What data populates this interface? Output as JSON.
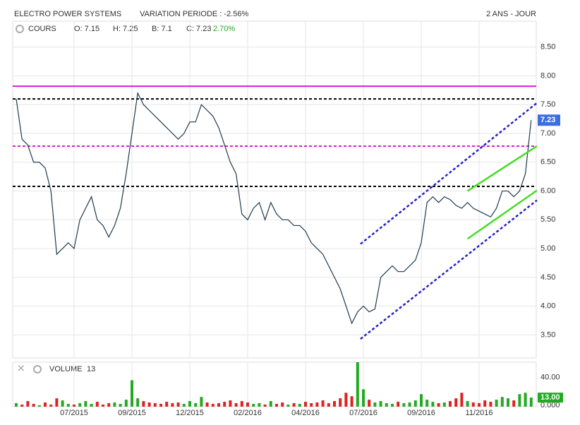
{
  "chart_data": {
    "type": "line",
    "title": "ELECTRO POWER SYSTEMS",
    "subtitle": "VARIATION PERIODE : -2.56%",
    "period": "2 ANS - JOUR",
    "legend": {
      "name": "COURS",
      "open": "O: 7.15",
      "high": "H: 7.25",
      "low": "B: 7.1",
      "close": "C: 7.23",
      "change": "2.70%"
    },
    "categories": [
      null,
      null,
      null,
      null,
      null,
      null,
      null,
      null,
      null,
      null,
      "07/2015",
      null,
      null,
      null,
      null,
      null,
      null,
      null,
      null,
      null,
      "09/2015",
      null,
      null,
      null,
      null,
      null,
      null,
      null,
      null,
      null,
      "12/2015",
      null,
      null,
      null,
      null,
      null,
      null,
      null,
      null,
      null,
      "02/2016",
      null,
      null,
      null,
      null,
      null,
      null,
      null,
      null,
      null,
      "04/2016",
      null,
      null,
      null,
      null,
      null,
      null,
      null,
      null,
      null,
      "07/2016",
      null,
      null,
      null,
      null,
      null,
      null,
      null,
      null,
      null,
      "09/2016",
      null,
      null,
      null,
      null,
      null,
      null,
      null,
      null,
      null,
      "11/2016",
      null,
      null,
      null,
      null,
      null,
      null,
      null,
      null,
      null
    ],
    "series": [
      {
        "name": "COURS",
        "color": "#1f3a4d",
        "values": [
          7.6,
          6.9,
          6.8,
          6.5,
          6.5,
          6.4,
          6.0,
          4.9,
          5.0,
          5.1,
          5.0,
          5.5,
          5.7,
          5.9,
          5.5,
          5.4,
          5.2,
          5.4,
          5.7,
          6.3,
          7.0,
          7.7,
          7.5,
          7.4,
          7.3,
          7.2,
          7.1,
          7.0,
          6.9,
          7.0,
          7.2,
          7.2,
          7.5,
          7.4,
          7.3,
          7.1,
          6.8,
          6.5,
          6.3,
          5.6,
          5.5,
          5.7,
          5.8,
          5.5,
          5.8,
          5.6,
          5.5,
          5.5,
          5.4,
          5.4,
          5.3,
          5.1,
          5.0,
          4.9,
          4.7,
          4.5,
          4.3,
          4.0,
          3.7,
          3.9,
          4.0,
          3.9,
          3.95,
          4.5,
          4.6,
          4.7,
          4.6,
          4.6,
          4.7,
          4.8,
          5.1,
          5.8,
          5.9,
          5.8,
          5.9,
          5.85,
          5.75,
          5.7,
          5.8,
          5.7,
          5.65,
          5.6,
          5.55,
          5.7,
          6.0,
          6.0,
          5.9,
          6.0,
          6.3,
          7.23
        ]
      }
    ],
    "ylim": [
      3.1,
      8.95
    ],
    "yticks": [
      {
        "value": 3.5,
        "label": "3.50"
      },
      {
        "value": 4,
        "label": "4.00"
      },
      {
        "value": 4.5,
        "label": "4.50"
      },
      {
        "value": 5,
        "label": "5.00"
      },
      {
        "value": 5.5,
        "label": "5.50"
      },
      {
        "value": 6,
        "label": "6.00"
      },
      {
        "value": 6.5,
        "label": "6.50"
      },
      {
        "value": 7,
        "label": "7.00"
      },
      {
        "value": 7.5,
        "label": "7.50"
      },
      {
        "value": 8,
        "label": "8.00"
      },
      {
        "value": 8.5,
        "label": "8.50"
      }
    ],
    "grid": true,
    "hlines": [
      {
        "value": 7.82,
        "color": "#d81bd8",
        "dashed": false
      },
      {
        "value": 6.78,
        "color": "#d81bd8",
        "dashed": true
      },
      {
        "value": 7.6,
        "color": "#000000",
        "dashed": true
      },
      {
        "value": 6.08,
        "color": "#000000",
        "dashed": true
      }
    ],
    "trendlines": [
      {
        "x": [
          59.5,
          90
        ],
        "y": [
          5.08,
          7.53
        ],
        "color": "#2222cc",
        "dashed": true
      },
      {
        "x": [
          59.5,
          90
        ],
        "y": [
          3.43,
          5.84
        ],
        "color": "#2222cc",
        "dashed": true
      },
      {
        "x": [
          78,
          90
        ],
        "y": [
          6.0,
          6.78
        ],
        "color": "#44dd22",
        "dashed": false
      },
      {
        "x": [
          78,
          90
        ],
        "y": [
          5.17,
          6.01
        ],
        "color": "#44dd22",
        "dashed": false
      }
    ],
    "volume": {
      "name": "VOLUME",
      "last": "13",
      "last_label": "13.00",
      "up_color": "#22aa22",
      "down_color": "#dd2222",
      "values": [
        5,
        3,
        8,
        4,
        2,
        6,
        3,
        12,
        9,
        4,
        3,
        5,
        8,
        4,
        7,
        3,
        5,
        6,
        4,
        10,
        38,
        12,
        8,
        6,
        5,
        4,
        7,
        5,
        6,
        4,
        8,
        5,
        14,
        6,
        4,
        5,
        7,
        9,
        5,
        8,
        6,
        4,
        5,
        3,
        8,
        4,
        6,
        3,
        5,
        4,
        7,
        5,
        6,
        9,
        5,
        8,
        12,
        20,
        15,
        64,
        25,
        10,
        6,
        8,
        5,
        4,
        7,
        5,
        6,
        9,
        18,
        10,
        7,
        5,
        6,
        8,
        12,
        20,
        8,
        6,
        5,
        9,
        7,
        10,
        14,
        12,
        9,
        18,
        20,
        13
      ],
      "ylim": [
        0,
        64
      ],
      "yticks": [
        {
          "value": 0,
          "label": "0.000"
        },
        {
          "value": 40,
          "label": "40.00"
        }
      ]
    }
  }
}
